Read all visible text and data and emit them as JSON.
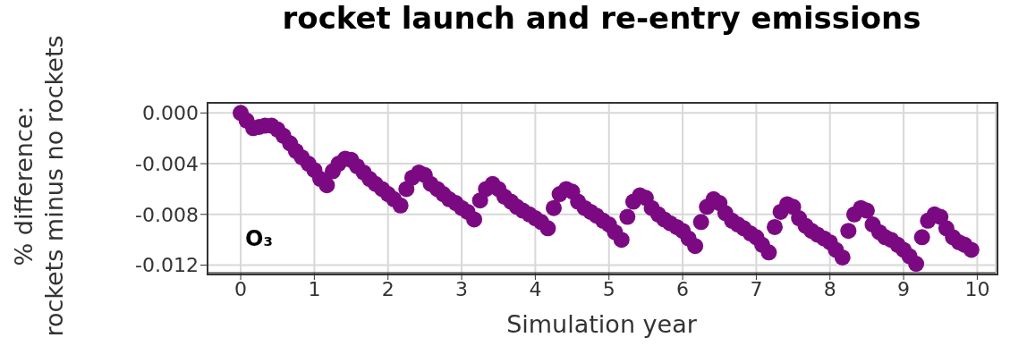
{
  "chart_data": {
    "type": "scatter",
    "title": "rocket launch and re-entry emissions",
    "xlabel": "Simulation year",
    "ylabel": "% difference:\nrockets minus no rockets",
    "annotations": [
      "O₃"
    ],
    "x": [
      0,
      0.08,
      0.17,
      0.25,
      0.33,
      0.42,
      0.5,
      0.58,
      0.67,
      0.75,
      0.83,
      0.92,
      1.0,
      1.08,
      1.17,
      1.25,
      1.33,
      1.42,
      1.5,
      1.58,
      1.67,
      1.75,
      1.83,
      1.92,
      2.0,
      2.08,
      2.17,
      2.25,
      2.33,
      2.42,
      2.5,
      2.58,
      2.67,
      2.75,
      2.83,
      2.92,
      3.0,
      3.08,
      3.17,
      3.25,
      3.33,
      3.42,
      3.5,
      3.58,
      3.67,
      3.75,
      3.83,
      3.92,
      4.0,
      4.08,
      4.17,
      4.25,
      4.33,
      4.42,
      4.5,
      4.58,
      4.67,
      4.75,
      4.83,
      4.92,
      5.0,
      5.08,
      5.17,
      5.25,
      5.33,
      5.42,
      5.5,
      5.58,
      5.67,
      5.75,
      5.83,
      5.92,
      6.0,
      6.08,
      6.17,
      6.25,
      6.33,
      6.42,
      6.5,
      6.58,
      6.67,
      6.75,
      6.83,
      6.92,
      7.0,
      7.08,
      7.17,
      7.25,
      7.33,
      7.42,
      7.5,
      7.58,
      7.67,
      7.75,
      7.83,
      7.92,
      8.0,
      8.08,
      8.17,
      8.25,
      8.33,
      8.42,
      8.5,
      8.58,
      8.67,
      8.75,
      8.83,
      8.92,
      9.0,
      9.08,
      9.17,
      9.25,
      9.33,
      9.42,
      9.5,
      9.58,
      9.67,
      9.75,
      9.83,
      9.92
    ],
    "series": [
      {
        "color": "#7b0a82",
        "values": [
          0,
          -0.0006,
          -0.0012,
          -0.0011,
          -0.001,
          -0.001,
          -0.0013,
          -0.0018,
          -0.0024,
          -0.003,
          -0.0035,
          -0.004,
          -0.0045,
          -0.0052,
          -0.0057,
          -0.0046,
          -0.004,
          -0.0036,
          -0.0037,
          -0.0042,
          -0.0047,
          -0.0052,
          -0.0056,
          -0.006,
          -0.0064,
          -0.0068,
          -0.0073,
          -0.006,
          -0.0051,
          -0.0047,
          -0.0049,
          -0.0056,
          -0.006,
          -0.0064,
          -0.0068,
          -0.0071,
          -0.0075,
          -0.0078,
          -0.0084,
          -0.0069,
          -0.006,
          -0.0056,
          -0.006,
          -0.0066,
          -0.007,
          -0.0074,
          -0.0077,
          -0.008,
          -0.0083,
          -0.0086,
          -0.0091,
          -0.0075,
          -0.0064,
          -0.006,
          -0.0062,
          -0.007,
          -0.0075,
          -0.0078,
          -0.0081,
          -0.0085,
          -0.0088,
          -0.0094,
          -0.01,
          -0.0082,
          -0.007,
          -0.0065,
          -0.0067,
          -0.0075,
          -0.008,
          -0.0084,
          -0.0087,
          -0.009,
          -0.0093,
          -0.0099,
          -0.0105,
          -0.0086,
          -0.0074,
          -0.0068,
          -0.0071,
          -0.0079,
          -0.0085,
          -0.0088,
          -0.0091,
          -0.0095,
          -0.0098,
          -0.0104,
          -0.011,
          -0.009,
          -0.0078,
          -0.0072,
          -0.0074,
          -0.0083,
          -0.0089,
          -0.0093,
          -0.0096,
          -0.0099,
          -0.0102,
          -0.0108,
          -0.0114,
          -0.0093,
          -0.008,
          -0.0075,
          -0.0077,
          -0.0088,
          -0.0094,
          -0.0098,
          -0.01,
          -0.0104,
          -0.0108,
          -0.0113,
          -0.0119,
          -0.0098,
          -0.0085,
          -0.008,
          -0.0082,
          -0.0091,
          -0.0098,
          -0.0102,
          -0.0104,
          -0.0108
        ]
      }
    ],
    "xlim": [
      -0.45,
      10.25
    ],
    "ylim": [
      -0.0126,
      0.0008
    ],
    "xticks": [
      0,
      1,
      2,
      3,
      4,
      5,
      6,
      7,
      8,
      9,
      10
    ],
    "yticks": [
      {
        "value": 0,
        "label": "0.000"
      },
      {
        "value": -0.004,
        "label": "-0.004"
      },
      {
        "value": -0.008,
        "label": "-0.008"
      },
      {
        "value": -0.012,
        "label": "-0.012"
      }
    ],
    "grid": true,
    "marker": "circle",
    "legend": false
  }
}
